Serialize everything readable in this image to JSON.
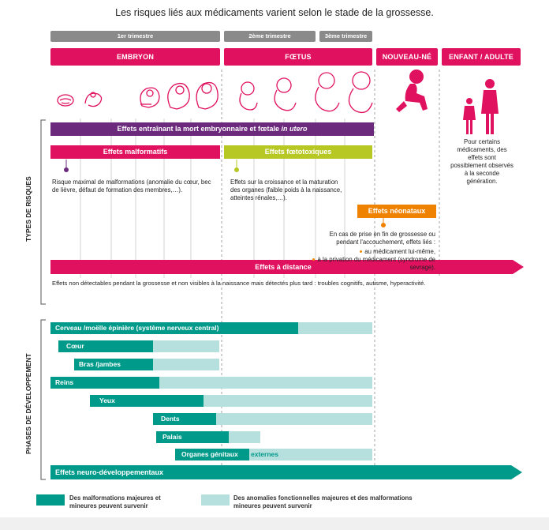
{
  "title": "Les risques liés aux médicaments varient selon le stade de la grossesse.",
  "trimesters": {
    "t1": "1er trimestre",
    "t2": "2ème trimestre",
    "t3": "3ème trimestre"
  },
  "stages": {
    "embryon": "EMBRYON",
    "foetus": "FŒTUS",
    "nouveau_ne": "NOUVEAU-NÉ",
    "enfant_adulte": "ENFANT / ADULTE"
  },
  "risk_section_label": "TYPES DE RISQUES",
  "dev_section_label": "PHASES DE DÉVELOPPEMENT",
  "risks": {
    "mort_prefix": "Effets entraînant la mort embryonnaire et fœtale ",
    "mort_italic": "in utero",
    "malformatifs": "Effets malformatifs",
    "malformatifs_desc": "Risque maximal de malformations (anomalie du cœur, bec de lièvre, défaut de formation des membres,…).",
    "foetotoxiques": "Effets fœtotoxiques",
    "foetotoxiques_desc": "Effets sur la croissance et la maturation des organes (faible poids à la naissance, atteintes rénales,…).",
    "neonataux": "Effets néonataux",
    "neonataux_desc": "En cas de prise en fin de grossesse ou pendant l'accouchement, effets liés :",
    "neonataux_b1": "au médicament lui-même,",
    "neonataux_b2": "à la privation du médicament (syndrome de sevrage).",
    "distance": "Effets à distance",
    "distance_desc": "Effets non détectables pendant la grossesse et non visibles à la naissance mais détectés plus tard : troubles cognitifs, autisme, hyperactivité.",
    "second_gen": "Pour certains médicaments, des effets sont possiblement observés à la seconde génération."
  },
  "development": [
    {
      "label": "Cerveau /moëlle épinière (système nerveux central)"
    },
    {
      "label": "Cœur"
    },
    {
      "label": "Bras /jambes"
    },
    {
      "label": "Reins"
    },
    {
      "label": "Yeux"
    },
    {
      "label": "Dents"
    },
    {
      "label": "Palais"
    },
    {
      "label": "Organes génitaux",
      "suffix": "externes"
    }
  ],
  "neuro": "Effets neuro-développementaux",
  "legend": {
    "dark": "Des malformations majeures et mineures peuvent survenir",
    "light": "Des anomalies fonctionnelles majeures et des malformations mineures peuvent survenir"
  },
  "colors": {
    "magenta": "#e0115f",
    "purple": "#6b2a7c",
    "lime": "#b7c825",
    "orange": "#ef8200",
    "teal": "#009a8a",
    "teal_light": "#b5e0dd",
    "grey": "#8a8a8a"
  }
}
